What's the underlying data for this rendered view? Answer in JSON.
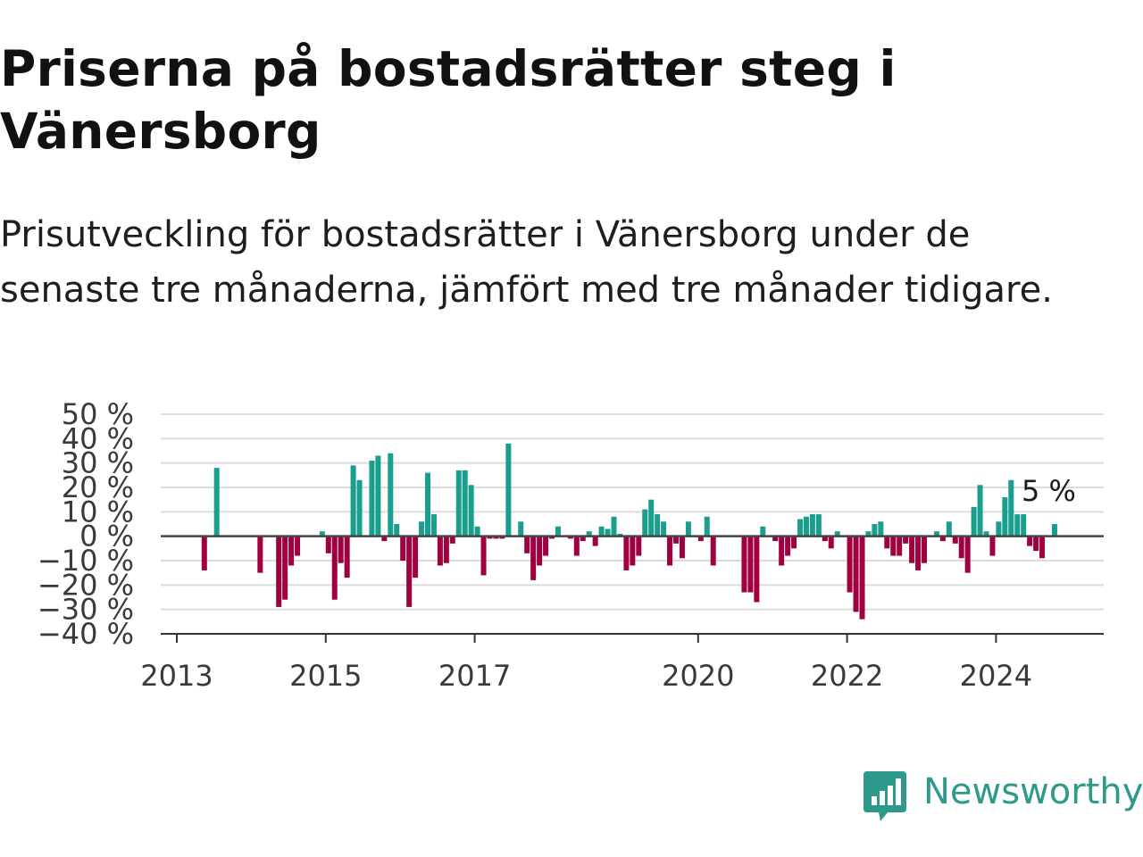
{
  "title": "Priserna på bostadsrätter steg i Vänersborg",
  "subtitle": "Prisutveckling för bostadsrätter i Vänersborg under de senaste tre månaderna, jämfört med tre månader tidigare.",
  "brand": {
    "name": "Newsworthy"
  },
  "colors": {
    "positive": "#1a9e8e",
    "negative": "#a0003f",
    "grid": "#dcdcdc",
    "zero": "#444444",
    "brand": "#2e9a8c"
  },
  "chart_data": {
    "type": "bar",
    "y_unit": "%",
    "ylim": [
      -40,
      50
    ],
    "yticks": [
      50,
      40,
      30,
      20,
      10,
      0,
      -10,
      -20,
      -30,
      -40
    ],
    "ytick_labels": [
      "50 %",
      "40 %",
      "30 %",
      "20 %",
      "10 %",
      "0 %",
      "−10 %",
      "−20 %",
      "−30 %",
      "−40 %"
    ],
    "xticks": [
      2013,
      2015,
      2017,
      2020,
      2022,
      2024
    ],
    "xtick_labels": [
      "2013",
      "2015",
      "2017",
      "2020",
      "2022",
      "2024"
    ],
    "grid": true,
    "last_value_label": "5 %",
    "series": [
      {
        "values": [
          {
            "x": "2013-05",
            "y": -14
          },
          {
            "x": "2013-07",
            "y": 28
          },
          {
            "x": "2014-02",
            "y": -15
          },
          {
            "x": "2014-05",
            "y": -29
          },
          {
            "x": "2014-06",
            "y": -26
          },
          {
            "x": "2014-07",
            "y": -12
          },
          {
            "x": "2014-08",
            "y": -8
          },
          {
            "x": "2014-12",
            "y": 2
          },
          {
            "x": "2015-01",
            "y": -7
          },
          {
            "x": "2015-02",
            "y": -26
          },
          {
            "x": "2015-03",
            "y": -11
          },
          {
            "x": "2015-04",
            "y": -17
          },
          {
            "x": "2015-05",
            "y": 29
          },
          {
            "x": "2015-06",
            "y": 23
          },
          {
            "x": "2015-08",
            "y": 31
          },
          {
            "x": "2015-09",
            "y": 33
          },
          {
            "x": "2015-10",
            "y": -2
          },
          {
            "x": "2015-11",
            "y": 34
          },
          {
            "x": "2015-12",
            "y": 5
          },
          {
            "x": "2016-01",
            "y": -10
          },
          {
            "x": "2016-02",
            "y": -29
          },
          {
            "x": "2016-03",
            "y": -17
          },
          {
            "x": "2016-04",
            "y": 6
          },
          {
            "x": "2016-05",
            "y": 26
          },
          {
            "x": "2016-06",
            "y": 9
          },
          {
            "x": "2016-07",
            "y": -12
          },
          {
            "x": "2016-08",
            "y": -11
          },
          {
            "x": "2016-09",
            "y": -3
          },
          {
            "x": "2016-10",
            "y": 27
          },
          {
            "x": "2016-11",
            "y": 27
          },
          {
            "x": "2016-12",
            "y": 21
          },
          {
            "x": "2017-01",
            "y": 4
          },
          {
            "x": "2017-02",
            "y": -16
          },
          {
            "x": "2017-03",
            "y": -1
          },
          {
            "x": "2017-04",
            "y": -1
          },
          {
            "x": "2017-05",
            "y": -1
          },
          {
            "x": "2017-06",
            "y": 38
          },
          {
            "x": "2017-08",
            "y": 6
          },
          {
            "x": "2017-09",
            "y": -7
          },
          {
            "x": "2017-10",
            "y": -18
          },
          {
            "x": "2017-11",
            "y": -12
          },
          {
            "x": "2017-12",
            "y": -8
          },
          {
            "x": "2018-01",
            "y": -1
          },
          {
            "x": "2018-02",
            "y": 4
          },
          {
            "x": "2018-04",
            "y": -1
          },
          {
            "x": "2018-05",
            "y": -8
          },
          {
            "x": "2018-06",
            "y": -2
          },
          {
            "x": "2018-07",
            "y": 2
          },
          {
            "x": "2018-08",
            "y": -4
          },
          {
            "x": "2018-09",
            "y": 4
          },
          {
            "x": "2018-10",
            "y": 3
          },
          {
            "x": "2018-11",
            "y": 8
          },
          {
            "x": "2018-12",
            "y": 1
          },
          {
            "x": "2019-01",
            "y": -14
          },
          {
            "x": "2019-02",
            "y": -12
          },
          {
            "x": "2019-03",
            "y": -8
          },
          {
            "x": "2019-04",
            "y": 11
          },
          {
            "x": "2019-05",
            "y": 15
          },
          {
            "x": "2019-06",
            "y": 9
          },
          {
            "x": "2019-07",
            "y": 6
          },
          {
            "x": "2019-08",
            "y": -12
          },
          {
            "x": "2019-09",
            "y": -3
          },
          {
            "x": "2019-10",
            "y": -9
          },
          {
            "x": "2019-11",
            "y": 6
          },
          {
            "x": "2020-01",
            "y": -2
          },
          {
            "x": "2020-02",
            "y": 8
          },
          {
            "x": "2020-03",
            "y": -12
          },
          {
            "x": "2020-08",
            "y": -23
          },
          {
            "x": "2020-09",
            "y": -23
          },
          {
            "x": "2020-10",
            "y": -27
          },
          {
            "x": "2020-11",
            "y": 4
          },
          {
            "x": "2021-01",
            "y": -2
          },
          {
            "x": "2021-02",
            "y": -12
          },
          {
            "x": "2021-03",
            "y": -8
          },
          {
            "x": "2021-04",
            "y": -5
          },
          {
            "x": "2021-05",
            "y": 7
          },
          {
            "x": "2021-06",
            "y": 8
          },
          {
            "x": "2021-07",
            "y": 9
          },
          {
            "x": "2021-08",
            "y": 9
          },
          {
            "x": "2021-09",
            "y": -2
          },
          {
            "x": "2021-10",
            "y": -5
          },
          {
            "x": "2021-11",
            "y": 2
          },
          {
            "x": "2022-01",
            "y": -23
          },
          {
            "x": "2022-02",
            "y": -31
          },
          {
            "x": "2022-03",
            "y": -34
          },
          {
            "x": "2022-04",
            "y": 2
          },
          {
            "x": "2022-05",
            "y": 5
          },
          {
            "x": "2022-06",
            "y": 6
          },
          {
            "x": "2022-07",
            "y": -5
          },
          {
            "x": "2022-08",
            "y": -8
          },
          {
            "x": "2022-09",
            "y": -8
          },
          {
            "x": "2022-10",
            "y": -3
          },
          {
            "x": "2022-11",
            "y": -11
          },
          {
            "x": "2022-12",
            "y": -14
          },
          {
            "x": "2023-01",
            "y": -11
          },
          {
            "x": "2023-03",
            "y": 2
          },
          {
            "x": "2023-04",
            "y": -2
          },
          {
            "x": "2023-05",
            "y": 6
          },
          {
            "x": "2023-06",
            "y": -3
          },
          {
            "x": "2023-07",
            "y": -9
          },
          {
            "x": "2023-08",
            "y": -15
          },
          {
            "x": "2023-09",
            "y": 12
          },
          {
            "x": "2023-10",
            "y": 21
          },
          {
            "x": "2023-11",
            "y": 2
          },
          {
            "x": "2023-12",
            "y": -8
          },
          {
            "x": "2024-01",
            "y": 6
          },
          {
            "x": "2024-02",
            "y": 16
          },
          {
            "x": "2024-03",
            "y": 23
          },
          {
            "x": "2024-04",
            "y": 9
          },
          {
            "x": "2024-05",
            "y": 9
          },
          {
            "x": "2024-06",
            "y": -4
          },
          {
            "x": "2024-07",
            "y": -6
          },
          {
            "x": "2024-08",
            "y": -9
          },
          {
            "x": "2024-10",
            "y": 5
          }
        ]
      }
    ]
  }
}
